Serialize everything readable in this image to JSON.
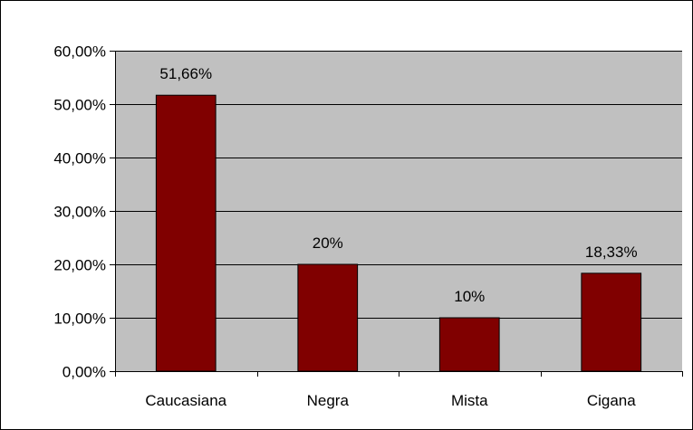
{
  "chart_data": {
    "type": "bar",
    "title": "",
    "xlabel": "",
    "ylabel": "",
    "categories": [
      "Caucasiana",
      "Negra",
      "Mista",
      "Cigana"
    ],
    "values": [
      51.66,
      20,
      10,
      18.33
    ],
    "data_labels": [
      "51,66%",
      "20%",
      "10%",
      "18,33%"
    ],
    "ylim": [
      0,
      60
    ],
    "y_ticks": [
      0,
      10,
      20,
      30,
      40,
      50,
      60
    ],
    "y_tick_labels": [
      "0,00%",
      "10,00%",
      "20,00%",
      "30,00%",
      "40,00%",
      "50,00%",
      "60,00%"
    ],
    "grid": true,
    "legend": "none",
    "colors": {
      "bar": "#800000",
      "plot_background": "#c0c0c0",
      "gridline": "#000000"
    }
  }
}
